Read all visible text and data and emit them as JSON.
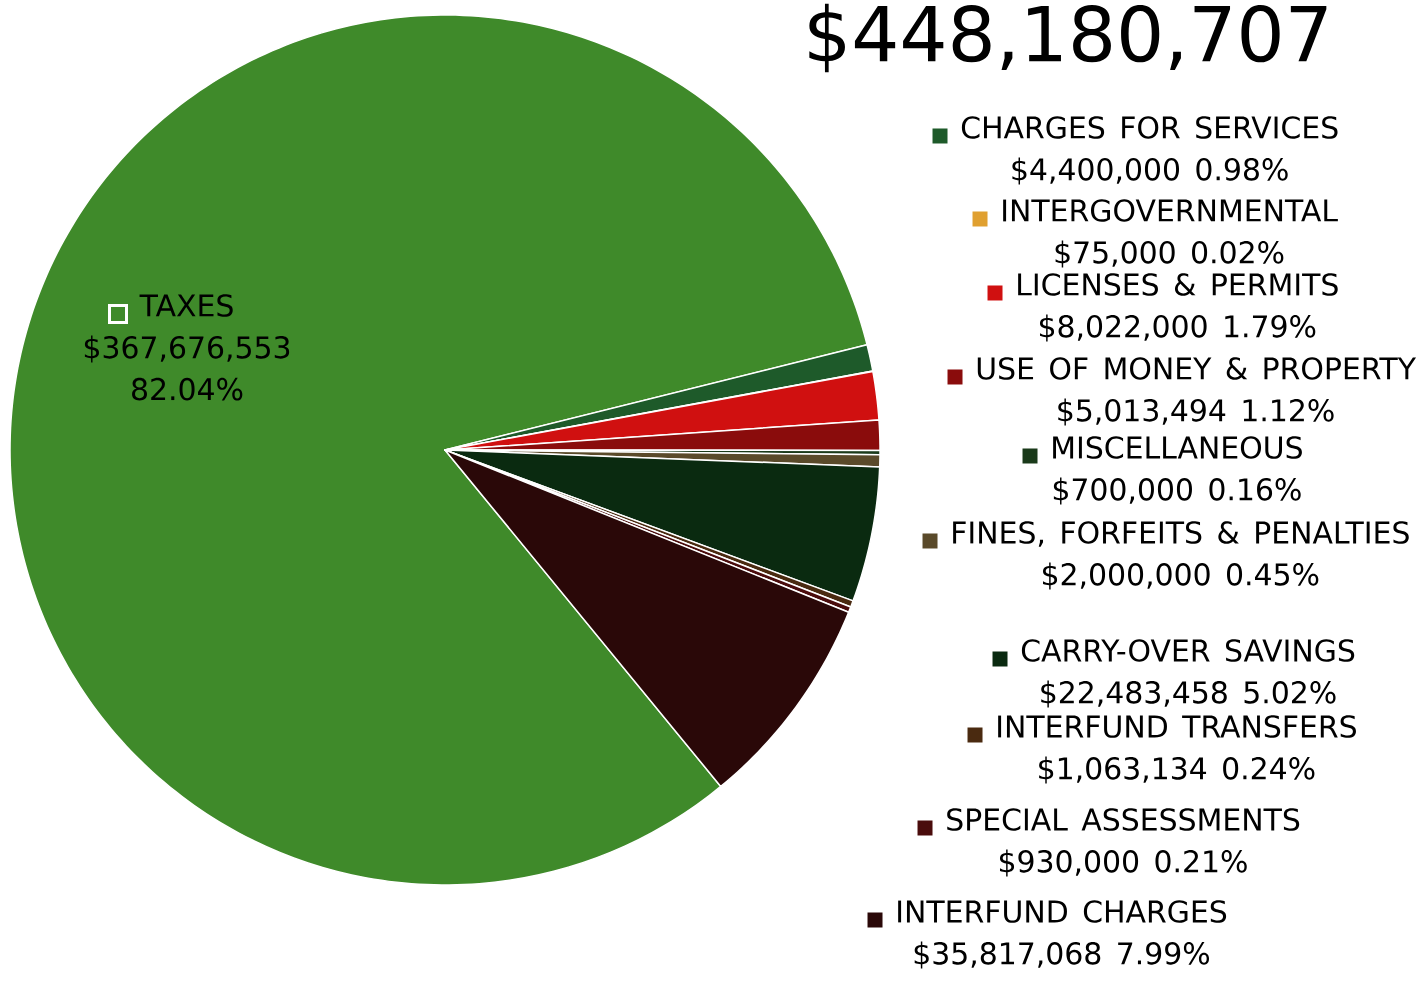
{
  "chart_data": {
    "type": "pie",
    "title": "$448,180,707",
    "legend": "right",
    "categories": [
      "TAXES",
      "CHARGES FOR SERVICES",
      "INTERGOVERNMENTAL",
      "LICENSES & PERMITS",
      "USE OF MONEY & PROPERTY",
      "MISCELLANEOUS",
      "FINES, FORFEITS & PENALTIES",
      "CARRY-OVER SAVINGS",
      "INTERFUND TRANSFERS",
      "SPECIAL ASSESSMENTS",
      "INTERFUND CHARGES"
    ],
    "values": [
      367676553,
      4400000,
      75000,
      8022000,
      5013494,
      700000,
      2000000,
      22483458,
      1063134,
      930000,
      35817068
    ],
    "colors": [
      "#3f8a2a",
      "#1e5a2a",
      "#e0a030",
      "#d01010",
      "#8a0c0c",
      "#1a3a1a",
      "#5a4a2a",
      "#0a2a10",
      "#4a2a10",
      "#4a0c0c",
      "#2a0808"
    ],
    "value_labels": [
      "$367,676,553 82.04%",
      "$4,400,000  0.98%",
      "$75,000  0.02%",
      "$8,022,000  1.79%",
      "$5,013,494  1.12%",
      "$700,000  0.16%",
      "$2,000,000  0.45%",
      "$22,483,458  5.02%",
      "$1,063,134  0.24%",
      "$930,000  0.21%",
      "$35,817,068  7.99%"
    ]
  }
}
